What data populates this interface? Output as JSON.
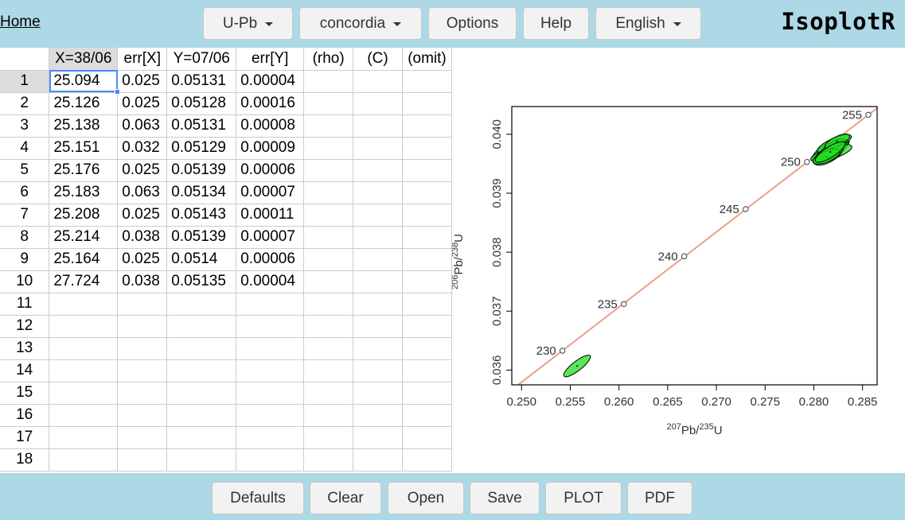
{
  "header": {
    "home_label": "Home",
    "menus": [
      {
        "label": "U-Pb",
        "dropdown": true
      },
      {
        "label": "concordia",
        "dropdown": true
      },
      {
        "label": "Options",
        "dropdown": false
      },
      {
        "label": "Help",
        "dropdown": false
      },
      {
        "label": "English",
        "dropdown": true
      }
    ],
    "logo": "IsoplotR"
  },
  "table": {
    "columns": [
      "X=38/06",
      "err[X]",
      "Y=07/06",
      "err[Y]",
      "(rho)",
      "(C)",
      "(omit)"
    ],
    "active_column": 0,
    "active_row": 1,
    "row_numbers": [
      "1",
      "2",
      "3",
      "4",
      "5",
      "6",
      "7",
      "8",
      "9",
      "10",
      "11",
      "12",
      "13",
      "14",
      "15",
      "16",
      "17",
      "18"
    ],
    "rows": [
      [
        "25.094",
        "0.025",
        "0.05131",
        "0.00004",
        "",
        "",
        ""
      ],
      [
        "25.126",
        "0.025",
        "0.05128",
        "0.00016",
        "",
        "",
        ""
      ],
      [
        "25.138",
        "0.063",
        "0.05131",
        "0.00008",
        "",
        "",
        ""
      ],
      [
        "25.151",
        "0.032",
        "0.05129",
        "0.00009",
        "",
        "",
        ""
      ],
      [
        "25.176",
        "0.025",
        "0.05139",
        "0.00006",
        "",
        "",
        ""
      ],
      [
        "25.183",
        "0.063",
        "0.05134",
        "0.00007",
        "",
        "",
        ""
      ],
      [
        "25.208",
        "0.025",
        "0.05143",
        "0.00011",
        "",
        "",
        ""
      ],
      [
        "25.214",
        "0.038",
        "0.05139",
        "0.00007",
        "",
        "",
        ""
      ],
      [
        "25.164",
        "0.025",
        "0.0514",
        "0.00006",
        "",
        "",
        ""
      ],
      [
        "27.724",
        "0.038",
        "0.05135",
        "0.00004",
        "",
        "",
        ""
      ],
      [
        "",
        "",
        "",
        "",
        "",
        "",
        ""
      ],
      [
        "",
        "",
        "",
        "",
        "",
        "",
        ""
      ],
      [
        "",
        "",
        "",
        "",
        "",
        "",
        ""
      ],
      [
        "",
        "",
        "",
        "",
        "",
        "",
        ""
      ],
      [
        "",
        "",
        "",
        "",
        "",
        "",
        ""
      ],
      [
        "",
        "",
        "",
        "",
        "",
        "",
        ""
      ],
      [
        "",
        "",
        "",
        "",
        "",
        "",
        ""
      ],
      [
        "",
        "",
        "",
        "",
        "",
        "",
        ""
      ]
    ]
  },
  "chart_data": {
    "type": "scatter",
    "xlabel_parts": [
      "207",
      "Pb/",
      "235",
      "U"
    ],
    "ylabel_parts": [
      "206",
      "Pb/",
      "238",
      "U"
    ],
    "xlim": [
      0.249,
      0.2865
    ],
    "ylim": [
      0.03575,
      0.04047
    ],
    "xticks": [
      "0.250",
      "0.255",
      "0.260",
      "0.265",
      "0.270",
      "0.275",
      "0.280",
      "0.285"
    ],
    "yticks": [
      "0.036",
      "0.037",
      "0.038",
      "0.039",
      "0.040"
    ],
    "concordia_color": "#e8a088",
    "ellipse_fill": "#22dd22",
    "age_markers": [
      {
        "label": "230",
        "x": 0.2542,
        "y": 0.03633
      },
      {
        "label": "235",
        "x": 0.2605,
        "y": 0.03712
      },
      {
        "label": "240",
        "x": 0.2667,
        "y": 0.03793
      },
      {
        "label": "245",
        "x": 0.273,
        "y": 0.03873
      },
      {
        "label": "250",
        "x": 0.2793,
        "y": 0.03953
      },
      {
        "label": "255",
        "x": 0.2856,
        "y": 0.04033
      }
    ],
    "ellipses": [
      {
        "cx": 0.28195,
        "cy": 0.03978,
        "rx": 0.0018,
        "ry": 8e-05,
        "angle": -20
      },
      {
        "cx": 0.2817,
        "cy": 0.03973,
        "rx": 0.002,
        "ry": 0.00013,
        "angle": -28
      },
      {
        "cx": 0.2818,
        "cy": 0.03968,
        "rx": 0.0022,
        "ry": 0.0001,
        "angle": -18
      },
      {
        "cx": 0.2821,
        "cy": 0.03984,
        "rx": 0.0019,
        "ry": 9e-05,
        "angle": -24
      },
      {
        "cx": 0.2815,
        "cy": 0.03965,
        "rx": 0.0017,
        "ry": 0.00012,
        "angle": -30
      },
      {
        "cx": 0.2819,
        "cy": 0.03975,
        "rx": 0.0016,
        "ry": 0.0001,
        "angle": -35
      },
      {
        "cx": 0.2813,
        "cy": 0.03962,
        "rx": 0.0015,
        "ry": 9e-05,
        "angle": -22
      },
      {
        "cx": 0.2824,
        "cy": 0.03988,
        "rx": 0.0014,
        "ry": 8e-05,
        "angle": -26
      },
      {
        "cx": 0.2817,
        "cy": 0.0397,
        "rx": 0.0018,
        "ry": 9e-05,
        "angle": -32
      },
      {
        "cx": 0.2557,
        "cy": 0.03607,
        "rx": 0.0017,
        "ry": 8e-05,
        "angle": -38
      }
    ]
  },
  "footer": {
    "buttons": [
      "Defaults",
      "Clear",
      "Open",
      "Save",
      "PLOT",
      "PDF"
    ]
  }
}
